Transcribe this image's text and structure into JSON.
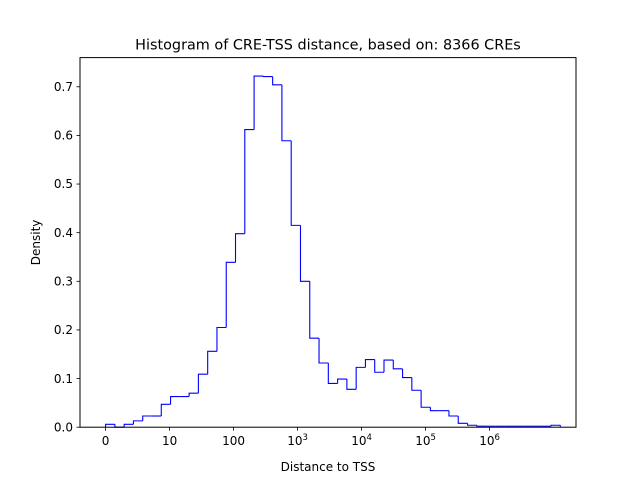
{
  "chart_data": {
    "type": "histogram",
    "title": "Histogram of CRE-TSS distance, based on: 8366 CREs",
    "xlabel": "Distance to TSS",
    "ylabel": "Density",
    "x_scale": "log10(x+1)",
    "xlim": [
      -0.4,
      7.35
    ],
    "ylim": [
      0,
      0.76
    ],
    "x_ticks": [
      {
        "value": 0,
        "label": "0"
      },
      {
        "value": 1,
        "label": "10"
      },
      {
        "value": 2,
        "label": "100"
      },
      {
        "value": 3,
        "base": "10",
        "exp": "3"
      },
      {
        "value": 4,
        "base": "10",
        "exp": "4"
      },
      {
        "value": 5,
        "base": "10",
        "exp": "5"
      },
      {
        "value": 6,
        "base": "10",
        "exp": "6"
      }
    ],
    "y_ticks": [
      {
        "value": 0.0,
        "label": "0.0"
      },
      {
        "value": 0.1,
        "label": "0.1"
      },
      {
        "value": 0.2,
        "label": "0.2"
      },
      {
        "value": 0.3,
        "label": "0.3"
      },
      {
        "value": 0.4,
        "label": "0.4"
      },
      {
        "value": 0.5,
        "label": "0.5"
      },
      {
        "value": 0.6,
        "label": "0.6"
      },
      {
        "value": 0.7,
        "label": "0.7"
      }
    ],
    "grid": false,
    "series_color": "#0000ff",
    "bin_edges": [
      0,
      0.145,
      0.29,
      0.435,
      0.58,
      0.725,
      0.87,
      1.015,
      1.16,
      1.305,
      1.45,
      1.595,
      1.74,
      1.885,
      2.03,
      2.175,
      2.32,
      2.465,
      2.61,
      2.755,
      2.9,
      3.045,
      3.19,
      3.335,
      3.48,
      3.625,
      3.77,
      3.915,
      4.06,
      4.205,
      4.35,
      4.495,
      4.64,
      4.785,
      4.93,
      5.075,
      5.22,
      5.365,
      5.51,
      5.655,
      5.8,
      5.945,
      6.09,
      6.235,
      6.38,
      6.525,
      6.67,
      6.815,
      6.96,
      7.105
    ],
    "values": [
      0.006,
      0.0,
      0.006,
      0.013,
      0.023,
      0.023,
      0.047,
      0.063,
      0.063,
      0.07,
      0.109,
      0.156,
      0.205,
      0.339,
      0.398,
      0.612,
      0.722,
      0.721,
      0.704,
      0.589,
      0.415,
      0.3,
      0.183,
      0.132,
      0.09,
      0.099,
      0.078,
      0.123,
      0.139,
      0.113,
      0.138,
      0.12,
      0.102,
      0.076,
      0.041,
      0.034,
      0.034,
      0.023,
      0.008,
      0.004,
      0.002,
      0.002,
      0.002,
      0.002,
      0.002,
      0.002,
      0.002,
      0.002,
      0.004
    ]
  }
}
